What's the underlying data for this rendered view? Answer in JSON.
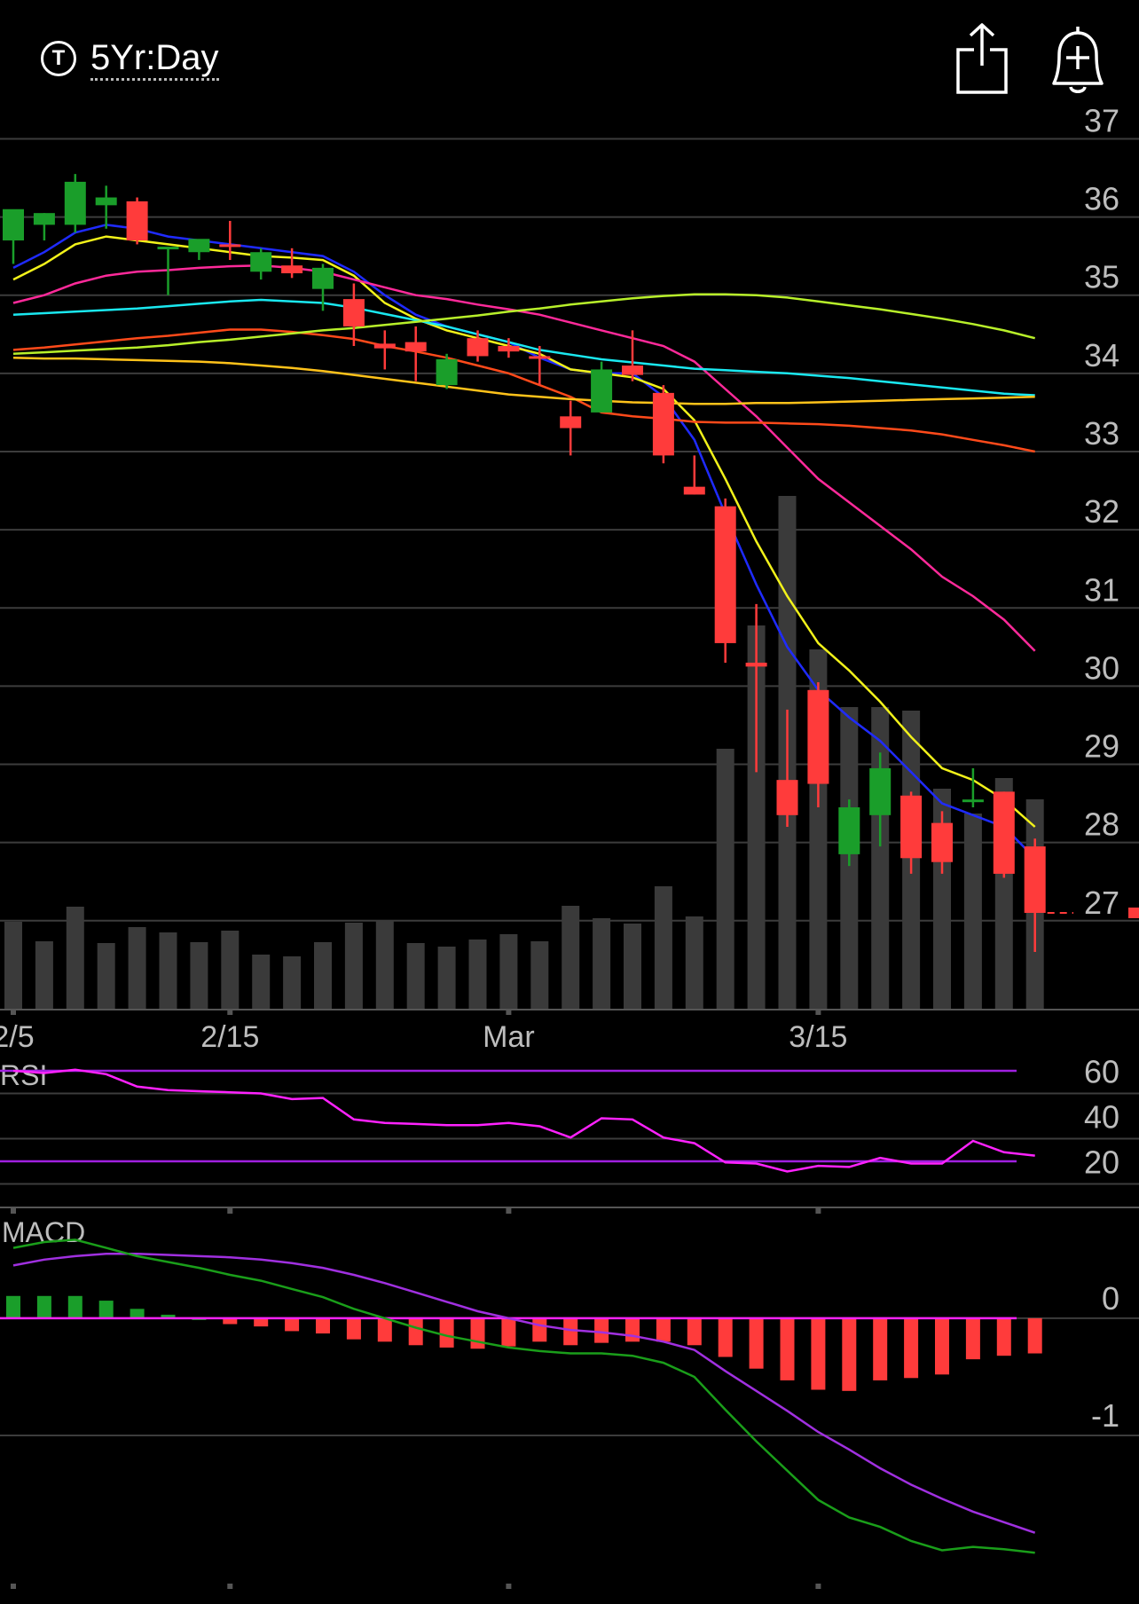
{
  "header": {
    "range_icon": "t-circle-icon",
    "range_letter": "T",
    "range_label": "5Yr:Day",
    "share_icon": "share-icon",
    "alert_icon": "bell-plus-icon"
  },
  "colors": {
    "up": "#1a9e2a",
    "down": "#ff3b3b",
    "volume": "#3a3a3a",
    "grid": "#3c3c3c",
    "axis_text": "#bdbdbd",
    "rsi": "#ff22ff",
    "rsi_band": "#a020e0",
    "macd": "#1a9e1a",
    "signal": "#a030e0"
  },
  "chart_data": [
    {
      "type": "candlestick",
      "y_ticks": [
        37,
        36,
        35,
        34,
        33,
        32,
        31,
        30,
        29,
        28,
        27
      ],
      "ylim": [
        25.5,
        37.3
      ],
      "x_tick_labels": [
        {
          "index": 0,
          "label": "2/5"
        },
        {
          "index": 7,
          "label": "2/15"
        },
        {
          "index": 16,
          "label": "Mar"
        },
        {
          "index": 26,
          "label": "3/15"
        }
      ],
      "last_price": 27.1,
      "candles": [
        {
          "o": 35.7,
          "h": 36.0,
          "l": 35.4,
          "c": 36.1
        },
        {
          "o": 35.9,
          "h": 36.05,
          "l": 35.7,
          "c": 36.05
        },
        {
          "o": 35.9,
          "h": 36.55,
          "l": 35.8,
          "c": 36.45
        },
        {
          "o": 36.15,
          "h": 36.4,
          "l": 35.85,
          "c": 36.25
        },
        {
          "o": 36.2,
          "h": 36.25,
          "l": 35.65,
          "c": 35.7
        },
        {
          "o": 35.6,
          "h": 35.6,
          "l": 35.0,
          "c": 35.62
        },
        {
          "o": 35.55,
          "h": 35.7,
          "l": 35.45,
          "c": 35.72
        },
        {
          "o": 35.65,
          "h": 35.95,
          "l": 35.45,
          "c": 35.62
        },
        {
          "o": 35.3,
          "h": 35.6,
          "l": 35.2,
          "c": 35.55
        },
        {
          "o": 35.38,
          "h": 35.6,
          "l": 35.22,
          "c": 35.28
        },
        {
          "o": 35.08,
          "h": 35.4,
          "l": 34.8,
          "c": 35.35
        },
        {
          "o": 34.95,
          "h": 35.15,
          "l": 34.35,
          "c": 34.6
        },
        {
          "o": 34.38,
          "h": 34.55,
          "l": 34.05,
          "c": 34.32
        },
        {
          "o": 34.4,
          "h": 34.6,
          "l": 33.9,
          "c": 34.28
        },
        {
          "o": 33.85,
          "h": 34.25,
          "l": 33.8,
          "c": 34.18
        },
        {
          "o": 34.45,
          "h": 34.55,
          "l": 34.15,
          "c": 34.22
        },
        {
          "o": 34.35,
          "h": 34.45,
          "l": 34.2,
          "c": 34.28
        },
        {
          "o": 34.22,
          "h": 34.35,
          "l": 33.85,
          "c": 34.2
        },
        {
          "o": 33.45,
          "h": 33.65,
          "l": 32.95,
          "c": 33.3
        },
        {
          "o": 33.5,
          "h": 34.15,
          "l": 33.5,
          "c": 34.05
        },
        {
          "o": 34.1,
          "h": 34.55,
          "l": 33.9,
          "c": 33.98
        },
        {
          "o": 33.75,
          "h": 33.85,
          "l": 32.85,
          "c": 32.95
        },
        {
          "o": 32.55,
          "h": 32.95,
          "l": 32.45,
          "c": 32.45
        },
        {
          "o": 32.3,
          "h": 32.4,
          "l": 30.3,
          "c": 30.55
        },
        {
          "o": 30.3,
          "h": 31.05,
          "l": 28.9,
          "c": 30.25
        },
        {
          "o": 28.8,
          "h": 29.7,
          "l": 28.2,
          "c": 28.35
        },
        {
          "o": 29.95,
          "h": 30.05,
          "l": 28.45,
          "c": 28.75
        },
        {
          "o": 27.85,
          "h": 28.55,
          "l": 27.7,
          "c": 28.45
        },
        {
          "o": 28.35,
          "h": 29.15,
          "l": 27.95,
          "c": 28.95
        },
        {
          "o": 28.6,
          "h": 28.65,
          "l": 27.6,
          "c": 27.8
        },
        {
          "o": 28.25,
          "h": 28.4,
          "l": 27.6,
          "c": 27.75
        },
        {
          "o": 28.55,
          "h": 28.95,
          "l": 28.45,
          "c": 28.55
        },
        {
          "o": 28.65,
          "h": 28.65,
          "l": 27.55,
          "c": 27.6
        },
        {
          "o": 27.95,
          "h": 28.05,
          "l": 26.6,
          "c": 27.1
        }
      ],
      "volume": [
        0.98,
        0.76,
        1.15,
        0.74,
        0.92,
        0.86,
        0.75,
        0.88,
        0.61,
        0.59,
        0.75,
        0.97,
        1.0,
        0.74,
        0.7,
        0.78,
        0.84,
        0.76,
        1.16,
        1.02,
        0.96,
        1.38,
        1.04,
        2.93,
        4.32,
        5.78,
        4.05,
        3.4,
        3.4,
        3.36,
        2.48,
        2.2,
        2.6,
        2.36
      ],
      "series": [
        {
          "color": "#1f2bff",
          "values": [
            35.35,
            35.55,
            35.8,
            35.9,
            35.85,
            35.75,
            35.7,
            35.65,
            35.6,
            35.55,
            35.5,
            35.3,
            35.0,
            34.75,
            34.6,
            34.5,
            34.4,
            34.2,
            34.05,
            34.0,
            34.0,
            33.7,
            33.15,
            32.2,
            31.3,
            30.5,
            29.95,
            29.6,
            29.3,
            28.9,
            28.5,
            28.35,
            28.2,
            27.8
          ]
        },
        {
          "color": "#f2f21a",
          "values": [
            35.2,
            35.4,
            35.65,
            35.75,
            35.7,
            35.65,
            35.6,
            35.55,
            35.5,
            35.48,
            35.45,
            35.25,
            34.9,
            34.7,
            34.55,
            34.45,
            34.35,
            34.25,
            34.05,
            34.0,
            33.95,
            33.8,
            33.4,
            32.65,
            31.85,
            31.15,
            30.55,
            30.2,
            29.8,
            29.35,
            28.95,
            28.8,
            28.55,
            28.2
          ]
        },
        {
          "color": "#ff2a9a",
          "values": [
            34.9,
            35.0,
            35.15,
            35.25,
            35.3,
            35.32,
            35.35,
            35.37,
            35.38,
            35.35,
            35.3,
            35.2,
            35.1,
            35.0,
            34.95,
            34.88,
            34.82,
            34.75,
            34.65,
            34.55,
            34.45,
            34.35,
            34.15,
            33.8,
            33.45,
            33.05,
            32.65,
            32.35,
            32.05,
            31.75,
            31.4,
            31.15,
            30.85,
            30.45
          ]
        },
        {
          "color": "#ff4a1a",
          "values": [
            34.3,
            34.33,
            34.37,
            34.41,
            34.45,
            34.48,
            34.52,
            34.56,
            34.56,
            34.53,
            34.49,
            34.44,
            34.35,
            34.28,
            34.2,
            34.1,
            34.0,
            33.85,
            33.7,
            33.5,
            33.45,
            33.42,
            33.38,
            33.37,
            33.37,
            33.36,
            33.35,
            33.33,
            33.3,
            33.27,
            33.22,
            33.15,
            33.08,
            33.0
          ]
        },
        {
          "color": "#1ae8f0",
          "values": [
            34.75,
            34.77,
            34.79,
            34.81,
            34.83,
            34.86,
            34.89,
            34.92,
            34.94,
            34.92,
            34.9,
            34.84,
            34.76,
            34.68,
            34.6,
            34.5,
            34.4,
            34.3,
            34.24,
            34.18,
            34.14,
            34.1,
            34.06,
            34.04,
            34.02,
            34.0,
            33.97,
            33.94,
            33.9,
            33.86,
            33.82,
            33.78,
            33.74,
            33.72
          ]
        },
        {
          "color": "#b8f02a",
          "values": [
            34.25,
            34.27,
            34.29,
            34.31,
            34.33,
            34.36,
            34.4,
            34.43,
            34.47,
            34.51,
            34.55,
            34.58,
            34.62,
            34.66,
            34.7,
            34.74,
            34.79,
            34.83,
            34.88,
            34.92,
            34.96,
            34.99,
            35.01,
            35.01,
            35.0,
            34.97,
            34.92,
            34.87,
            34.82,
            34.76,
            34.7,
            34.63,
            34.55,
            34.45
          ]
        },
        {
          "color": "#ffc21a",
          "values": [
            34.2,
            34.19,
            34.19,
            34.18,
            34.17,
            34.16,
            34.15,
            34.13,
            34.1,
            34.07,
            34.03,
            33.98,
            33.93,
            33.88,
            33.83,
            33.78,
            33.73,
            33.7,
            33.67,
            33.65,
            33.63,
            33.62,
            33.61,
            33.61,
            33.62,
            33.62,
            33.63,
            33.64,
            33.65,
            33.66,
            33.67,
            33.68,
            33.69,
            33.7
          ]
        }
      ]
    },
    {
      "type": "line",
      "title": "RSI",
      "y_ticks": [
        60,
        40,
        20
      ],
      "ylim": [
        10,
        70
      ],
      "bands": [
        70,
        30
      ],
      "values": [
        70,
        69,
        70.5,
        68.5,
        63,
        61.5,
        61,
        60.5,
        60,
        57.5,
        58,
        48.5,
        47,
        46.5,
        46,
        46,
        47,
        45.5,
        40.5,
        49,
        48.5,
        40.5,
        38,
        29.5,
        29,
        25.5,
        28,
        27.5,
        31.5,
        29,
        29,
        39,
        34,
        32.5
      ]
    },
    {
      "type": "bar",
      "title": "MACD",
      "y_ticks": [
        0,
        -1
      ],
      "ylim": [
        -2.15,
        0.65
      ],
      "histogram": [
        0.19,
        0.19,
        0.19,
        0.15,
        0.08,
        0.03,
        0.0,
        -0.05,
        -0.07,
        -0.11,
        -0.13,
        -0.18,
        -0.2,
        -0.23,
        -0.25,
        -0.26,
        -0.24,
        -0.2,
        -0.23,
        -0.21,
        -0.2,
        -0.2,
        -0.23,
        -0.33,
        -0.43,
        -0.53,
        -0.61,
        -0.62,
        -0.53,
        -0.51,
        -0.48,
        -0.35,
        -0.32,
        -0.3
      ],
      "macd": [
        0.6,
        0.65,
        0.67,
        0.6,
        0.53,
        0.48,
        0.43,
        0.37,
        0.32,
        0.25,
        0.18,
        0.08,
        0.0,
        -0.08,
        -0.15,
        -0.2,
        -0.25,
        -0.28,
        -0.3,
        -0.3,
        -0.32,
        -0.38,
        -0.5,
        -0.78,
        -1.05,
        -1.3,
        -1.55,
        -1.7,
        -1.78,
        -1.9,
        -1.98,
        -1.95,
        -1.97,
        -2.0
      ],
      "signal": [
        0.45,
        0.5,
        0.53,
        0.55,
        0.55,
        0.54,
        0.53,
        0.52,
        0.5,
        0.47,
        0.43,
        0.37,
        0.3,
        0.22,
        0.14,
        0.06,
        0.0,
        -0.06,
        -0.1,
        -0.12,
        -0.15,
        -0.2,
        -0.27,
        -0.45,
        -0.62,
        -0.79,
        -0.97,
        -1.12,
        -1.28,
        -1.42,
        -1.54,
        -1.65,
        -1.74,
        -1.83
      ]
    }
  ]
}
